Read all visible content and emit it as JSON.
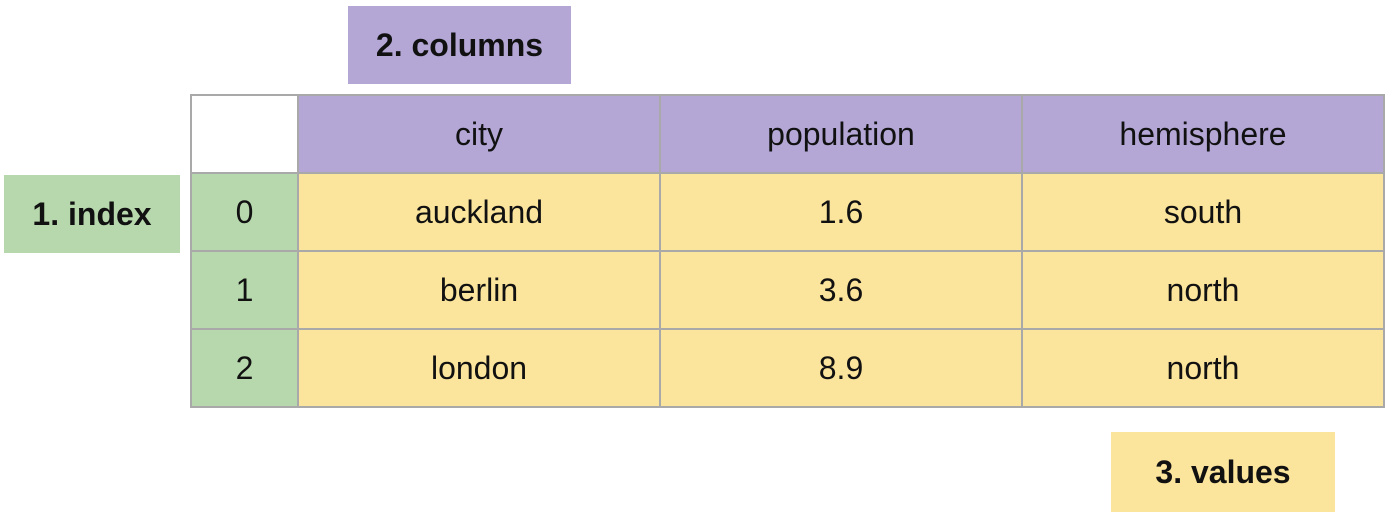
{
  "colors": {
    "index": "#b7d8ad",
    "columns": "#b4a7d6",
    "values": "#fbe49b",
    "border": "#a9a9a9"
  },
  "labels": {
    "index": "1. index",
    "columns": "2. columns",
    "values": "3. values"
  },
  "table": {
    "columns": [
      "city",
      "population",
      "hemisphere"
    ],
    "rows": [
      {
        "index": "0",
        "cells": [
          "auckland",
          "1.6",
          "south"
        ]
      },
      {
        "index": "1",
        "cells": [
          "berlin",
          "3.6",
          "north"
        ]
      },
      {
        "index": "2",
        "cells": [
          "london",
          "8.9",
          "north"
        ]
      }
    ]
  }
}
